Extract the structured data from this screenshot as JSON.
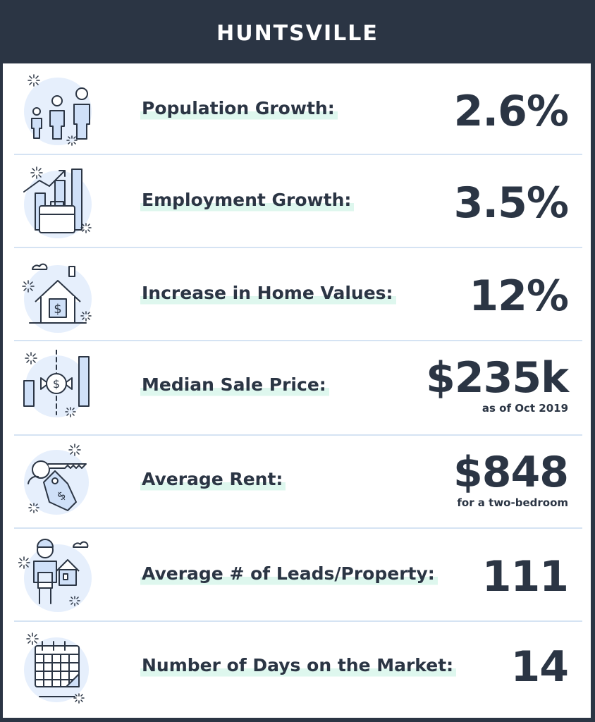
{
  "header": {
    "title": "HUNTSVILLE"
  },
  "stats": [
    {
      "label": "Population Growth:",
      "value": "2.6%",
      "note": "",
      "icon": "people-icon"
    },
    {
      "label": "Employment Growth:",
      "value": "3.5%",
      "note": "",
      "icon": "briefcase-chart-icon"
    },
    {
      "label": "Increase in Home Values:",
      "value": "12%",
      "note": "",
      "icon": "house-dollar-icon"
    },
    {
      "label": "Median Sale Price:",
      "value": "$235k",
      "note": "as of Oct 2019",
      "icon": "price-bars-icon"
    },
    {
      "label": "Average Rent:",
      "value": "$848",
      "note": "for a two-bedroom",
      "icon": "key-tag-icon"
    },
    {
      "label": "Average # of Leads/Property:",
      "value": "111",
      "note": "",
      "icon": "person-house-icon"
    },
    {
      "label": "Number of Days on the Market:",
      "value": "14",
      "note": "",
      "icon": "calendar-icon"
    }
  ],
  "colors": {
    "navy": "#2b3544",
    "highlight": "#def7ee",
    "icon_fill": "#cfe0f8",
    "divider": "#d5e3f3"
  }
}
